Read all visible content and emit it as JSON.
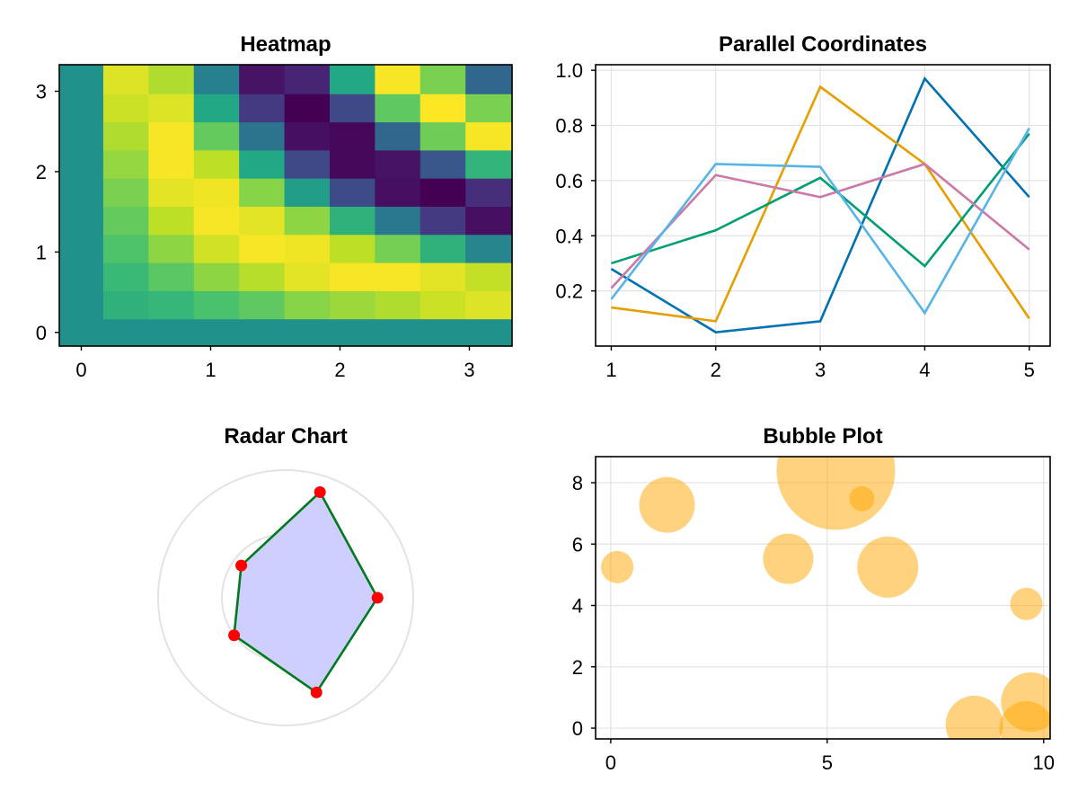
{
  "chart_data": [
    {
      "id": "heatmap",
      "type": "heatmap",
      "title": "Heatmap",
      "xlim": [
        -0.17,
        3.33
      ],
      "ylim": [
        -0.17,
        3.33
      ],
      "xticks": [
        "0",
        "1",
        "2",
        "3"
      ],
      "yticks": [
        "0",
        "1",
        "2",
        "3"
      ],
      "colormap": [
        "#440154",
        "#482475",
        "#414487",
        "#355f8d",
        "#2a788e",
        "#21918c",
        "#22a884",
        "#44bf70",
        "#7ad151",
        "#bddf26",
        "#fde725"
      ],
      "background_value": 0.5,
      "x_edges": [
        0.17,
        0.52,
        0.87,
        1.22,
        1.57,
        1.92,
        2.27,
        2.62,
        2.97,
        3.33
      ],
      "y_edges": [
        0.17,
        0.52,
        0.87,
        1.22,
        1.57,
        1.92,
        2.27,
        2.62,
        2.97,
        3.33
      ],
      "values": [
        [
          0.64,
          0.66,
          0.71,
          0.75,
          0.82,
          0.85,
          0.88,
          0.92,
          0.95
        ],
        [
          0.67,
          0.74,
          0.83,
          0.89,
          0.96,
          0.99,
          0.99,
          0.96,
          0.91
        ],
        [
          0.72,
          0.83,
          0.93,
          0.99,
          0.98,
          0.9,
          0.79,
          0.64,
          0.45
        ],
        [
          0.76,
          0.9,
          0.99,
          0.96,
          0.83,
          0.64,
          0.4,
          0.17,
          0.04
        ],
        [
          0.8,
          0.96,
          0.98,
          0.82,
          0.55,
          0.23,
          0.04,
          0.0,
          0.13
        ],
        [
          0.84,
          0.99,
          0.9,
          0.6,
          0.22,
          0.02,
          0.05,
          0.27,
          0.65
        ],
        [
          0.88,
          0.99,
          0.76,
          0.38,
          0.04,
          0.02,
          0.33,
          0.78,
          0.99
        ],
        [
          0.92,
          0.95,
          0.6,
          0.17,
          0.0,
          0.22,
          0.75,
          1.0,
          0.8
        ],
        [
          0.95,
          0.88,
          0.43,
          0.05,
          0.1,
          0.6,
          0.99,
          0.8,
          0.33
        ]
      ]
    },
    {
      "id": "parallel",
      "type": "line",
      "title": "Parallel Coordinates",
      "x": [
        1,
        2,
        3,
        4,
        5
      ],
      "xlim": [
        0.85,
        5.2
      ],
      "ylim": [
        0.0,
        1.02
      ],
      "xticks": [
        "1",
        "2",
        "3",
        "4",
        "5"
      ],
      "yticks": [
        "0.2",
        "0.4",
        "0.6",
        "0.8",
        "1.0"
      ],
      "grid": true,
      "series": [
        {
          "color": "#0072b2",
          "values": [
            0.28,
            0.05,
            0.09,
            0.97,
            0.54
          ]
        },
        {
          "color": "#e69f00",
          "values": [
            0.14,
            0.09,
            0.94,
            0.66,
            0.1
          ]
        },
        {
          "color": "#009e73",
          "values": [
            0.3,
            0.42,
            0.61,
            0.29,
            0.77
          ]
        },
        {
          "color": "#cc79a7",
          "values": [
            0.21,
            0.62,
            0.54,
            0.66,
            0.35
          ]
        },
        {
          "color": "#56b4e9",
          "values": [
            0.17,
            0.66,
            0.65,
            0.12,
            0.79
          ]
        }
      ]
    },
    {
      "id": "radar",
      "type": "radar",
      "title": "Radar Chart",
      "rings": [
        0.5,
        1.0
      ],
      "angles_deg": [
        0,
        72,
        144,
        216,
        288
      ],
      "values": [
        0.72,
        0.87,
        0.43,
        0.5,
        0.78
      ],
      "fill_color": "#ccccff",
      "line_color": "#007a1e",
      "point_color": "#ff0000"
    },
    {
      "id": "bubble",
      "type": "scatter",
      "title": "Bubble Plot",
      "xlim": [
        -0.35,
        10.15
      ],
      "ylim": [
        -0.35,
        8.85
      ],
      "xticks": [
        "0",
        "5",
        "10"
      ],
      "yticks": [
        "0",
        "2",
        "4",
        "6",
        "8"
      ],
      "grid": true,
      "color": "#ffa500",
      "opacity": 0.5,
      "points": [
        {
          "x": 0.15,
          "y": 5.25,
          "size": 0.18
        },
        {
          "x": 1.3,
          "y": 7.28,
          "size": 0.31
        },
        {
          "x": 4.1,
          "y": 5.52,
          "size": 0.28
        },
        {
          "x": 5.2,
          "y": 8.4,
          "size": 0.66
        },
        {
          "x": 5.8,
          "y": 7.48,
          "size": 0.14
        },
        {
          "x": 6.4,
          "y": 5.25,
          "size": 0.34
        },
        {
          "x": 8.4,
          "y": 0.12,
          "size": 0.32
        },
        {
          "x": 9.6,
          "y": 4.05,
          "size": 0.18
        },
        {
          "x": 9.6,
          "y": 0.0,
          "size": 0.3
        },
        {
          "x": 9.7,
          "y": 0.85,
          "size": 0.33
        }
      ]
    }
  ]
}
